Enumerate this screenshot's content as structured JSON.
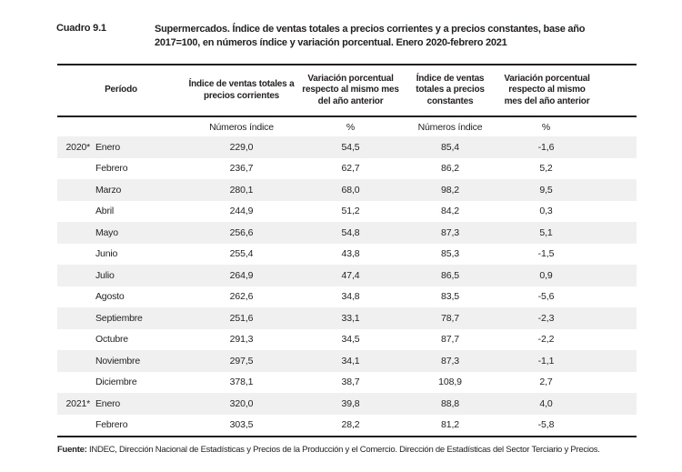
{
  "page": {
    "background": "#ffffff",
    "text_color": "#231f20",
    "stripe_color": "#f0f0f0",
    "border_color": "#231f20"
  },
  "caption": {
    "label": "Cuadro 9.1",
    "title": "Supermercados. Índice de ventas totales a precios corrientes y a precios constantes, base año 2017=100, en números índice y variación porcentual. Enero 2020-febrero 2021"
  },
  "table": {
    "columns": [
      "Período",
      "Índice de ventas totales a precios corrientes",
      "Variación porcentual respecto al mismo mes del año anterior",
      "Índice de ventas totales a precios constantes",
      "Variación porcentual respecto al mismo mes del año anterior"
    ],
    "units_row": [
      "",
      "Números índice",
      "%",
      "Números índice",
      "%"
    ],
    "rows": [
      {
        "year": "2020*",
        "month": "Enero",
        "values": [
          "229,0",
          "54,5",
          "85,4",
          "-1,6"
        ]
      },
      {
        "year": "",
        "month": "Febrero",
        "values": [
          "236,7",
          "62,7",
          "86,2",
          "5,2"
        ]
      },
      {
        "year": "",
        "month": "Marzo",
        "values": [
          "280,1",
          "68,0",
          "98,2",
          "9,5"
        ]
      },
      {
        "year": "",
        "month": "Abril",
        "values": [
          "244,9",
          "51,2",
          "84,2",
          "0,3"
        ]
      },
      {
        "year": "",
        "month": "Mayo",
        "values": [
          "256,6",
          "54,8",
          "87,3",
          "5,1"
        ]
      },
      {
        "year": "",
        "month": "Junio",
        "values": [
          "255,4",
          "43,8",
          "85,3",
          "-1,5"
        ]
      },
      {
        "year": "",
        "month": "Julio",
        "values": [
          "264,9",
          "47,4",
          "86,5",
          "0,9"
        ]
      },
      {
        "year": "",
        "month": "Agosto",
        "values": [
          "262,6",
          "34,8",
          "83,5",
          "-5,6"
        ]
      },
      {
        "year": "",
        "month": "Septiembre",
        "values": [
          "251,6",
          "33,1",
          "78,7",
          "-2,3"
        ]
      },
      {
        "year": "",
        "month": "Octubre",
        "values": [
          "291,3",
          "34,5",
          "87,7",
          "-2,2"
        ]
      },
      {
        "year": "",
        "month": "Noviembre",
        "values": [
          "297,5",
          "34,1",
          "87,3",
          "-1,1"
        ]
      },
      {
        "year": "",
        "month": "Diciembre",
        "values": [
          "378,1",
          "38,7",
          "108,9",
          "2,7"
        ]
      },
      {
        "year": "2021*",
        "month": "Enero",
        "values": [
          "320,0",
          "39,8",
          "88,8",
          "4,0"
        ]
      },
      {
        "year": "",
        "month": "Febrero",
        "values": [
          "303,5",
          "28,2",
          "81,2",
          "-5,8"
        ]
      }
    ]
  },
  "footer": {
    "label": "Fuente:",
    "text": " INDEC, Dirección Nacional de Estadísticas y Precios de la Producción y el Comercio. Dirección de Estadísticas del Sector Terciario y Precios."
  }
}
